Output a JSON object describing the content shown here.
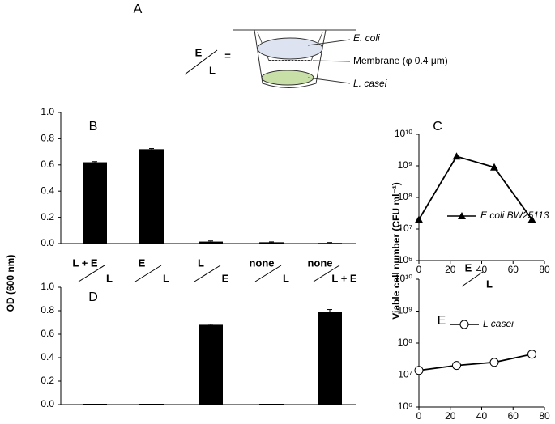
{
  "panel_a": {
    "letter": "A",
    "top": "E",
    "bottom": "L",
    "equals": "=",
    "label_ecoli": "E. coli",
    "label_membrane": "Membrane (φ 0.4 μm)",
    "label_lcasei": "L. casei"
  },
  "ylabel_od": "OD (600 nm)",
  "ylabel_viable": "Viable cell number (CFU ml⁻¹)",
  "chart_data": [
    {
      "type": "bar",
      "panel": "B",
      "categories": [
        "L + E",
        "E",
        "L",
        "none",
        "none"
      ],
      "categories_lower": [
        "L",
        "L",
        "E",
        "L",
        "L + E"
      ],
      "values": [
        0.62,
        0.72,
        0.015,
        0.01,
        0.005
      ],
      "errors": [
        0.005,
        0.005,
        0.005,
        0.003,
        0.003
      ],
      "color": "#000000",
      "ylim": [
        0,
        1
      ],
      "yticks": [
        {
          "value": 0,
          "label": "0.0"
        },
        {
          "value": 0.2,
          "label": "0.2"
        },
        {
          "value": 0.4,
          "label": "0.4"
        },
        {
          "value": 0.6,
          "label": "0.6"
        },
        {
          "value": 0.8,
          "label": "0.8"
        },
        {
          "value": 1,
          "label": "1.0"
        }
      ]
    },
    {
      "type": "line",
      "panel": "C",
      "log_y": true,
      "x": [
        0,
        24,
        48,
        72
      ],
      "series": [
        {
          "name": "E coli BW25113",
          "color": "#000000",
          "marker": "triangle",
          "values": [
            20000000,
            2000000000,
            900000000,
            20000000
          ]
        }
      ],
      "xlim": [
        0,
        80
      ],
      "xticks": [
        0,
        20,
        40,
        60,
        80
      ],
      "ylim": [
        1000000,
        10000000000
      ],
      "yticks": [
        {
          "value": 1000000,
          "label": "10⁶"
        },
        {
          "value": 10000000,
          "label": "10⁷"
        },
        {
          "value": 100000000,
          "label": "10⁸"
        },
        {
          "value": 1000000000,
          "label": "10⁹"
        },
        {
          "value": 10000000000,
          "label": "10¹⁰"
        }
      ],
      "condition_top": "E",
      "condition_bottom": "L"
    },
    {
      "type": "bar",
      "panel": "D",
      "values": [
        0,
        0,
        0.68,
        0,
        0.79
      ],
      "errors": [
        0,
        0,
        0.005,
        0,
        0.02
      ],
      "color": "#000000",
      "ylim": [
        0,
        1
      ],
      "yticks": [
        {
          "value": 0,
          "label": "0.0"
        },
        {
          "value": 0.2,
          "label": "0.2"
        },
        {
          "value": 0.4,
          "label": "0.4"
        },
        {
          "value": 0.6,
          "label": "0.6"
        },
        {
          "value": 0.8,
          "label": "0.8"
        },
        {
          "value": 1,
          "label": "1.0"
        }
      ]
    },
    {
      "type": "line",
      "panel": "E",
      "log_y": true,
      "x": [
        0,
        24,
        48,
        72
      ],
      "series": [
        {
          "name": "L casei",
          "color": "#000000",
          "marker": "circle",
          "values": [
            14000000,
            20000000,
            25000000,
            45000000
          ]
        }
      ],
      "xlim": [
        0,
        80
      ],
      "xticks": [
        0,
        20,
        40,
        60,
        80
      ],
      "ylim": [
        1000000,
        10000000000
      ],
      "yticks": [
        {
          "value": 1000000,
          "label": "10⁶"
        },
        {
          "value": 10000000,
          "label": "10⁷"
        },
        {
          "value": 100000000,
          "label": "10⁸"
        },
        {
          "value": 1000000000,
          "label": "10⁹"
        },
        {
          "value": 10000000000,
          "label": "10¹⁰"
        }
      ]
    }
  ]
}
